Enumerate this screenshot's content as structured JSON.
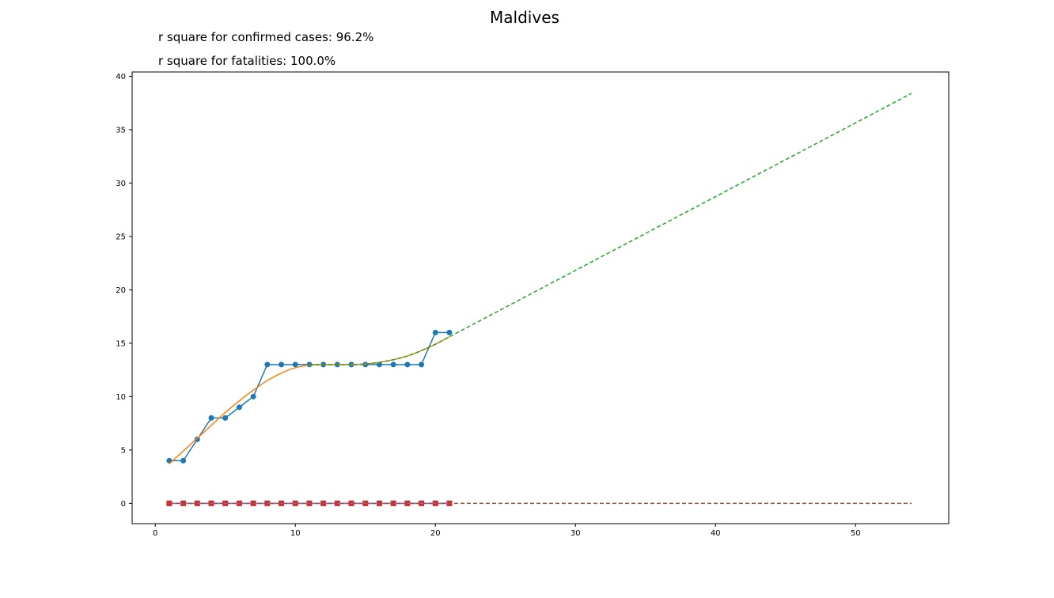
{
  "colors": {
    "confirmed": "#1f77b4",
    "confirmed_fit": "#ff7f0e",
    "confirmed_projection": "#2ca02c",
    "fatalities": "#d62728",
    "fatalities_fit": "#9467bd",
    "fatalities_projection": "#8c564b"
  },
  "chart_data": {
    "type": "line",
    "title": "Maldives",
    "annotations": [
      "r square for confirmed cases: 96.2%",
      "r square for fatalities: 100.0%"
    ],
    "xlabel": "",
    "ylabel": "",
    "xlim": [
      -1.65,
      56.65
    ],
    "ylim": [
      -1.9,
      40.4
    ],
    "xticks": [
      0,
      10,
      20,
      30,
      40,
      50
    ],
    "yticks": [
      0,
      5,
      10,
      15,
      20,
      25,
      30,
      35,
      40
    ],
    "grid": false,
    "series": [
      {
        "role": "confirmed",
        "style": "line-markers",
        "marker": "circle",
        "x": [
          1,
          2,
          3,
          4,
          5,
          6,
          7,
          8,
          9,
          10,
          11,
          12,
          13,
          14,
          15,
          16,
          17,
          18,
          19,
          20,
          21
        ],
        "y": [
          4,
          4,
          6,
          8,
          8,
          9,
          10,
          13,
          13,
          13,
          13,
          13,
          13,
          13,
          13,
          13,
          13,
          13,
          13,
          16,
          16
        ]
      },
      {
        "role": "confirmed_fit",
        "style": "solid",
        "x": [
          1,
          2,
          3,
          4,
          5,
          6,
          7,
          8,
          9,
          10,
          11,
          12,
          13,
          14,
          15,
          16,
          17,
          18,
          19,
          20,
          21
        ],
        "y": [
          3.7,
          4.9,
          6.1,
          7.3,
          8.5,
          9.6,
          10.6,
          11.5,
          12.2,
          12.7,
          12.95,
          13.0,
          13.0,
          13.0,
          13.05,
          13.2,
          13.45,
          13.8,
          14.3,
          14.9,
          15.6
        ]
      },
      {
        "role": "confirmed_projection",
        "style": "dashed",
        "x": [
          11,
          12,
          13,
          14,
          15,
          16,
          17,
          18,
          19,
          20,
          21,
          54
        ],
        "y": [
          12.95,
          13.0,
          13.0,
          13.0,
          13.05,
          13.2,
          13.45,
          13.8,
          14.3,
          14.9,
          15.6,
          38.4
        ]
      },
      {
        "role": "fatalities",
        "style": "line-markers",
        "marker": "square",
        "x": [
          1,
          2,
          3,
          4,
          5,
          6,
          7,
          8,
          9,
          10,
          11,
          12,
          13,
          14,
          15,
          16,
          17,
          18,
          19,
          20,
          21
        ],
        "y": [
          0,
          0,
          0,
          0,
          0,
          0,
          0,
          0,
          0,
          0,
          0,
          0,
          0,
          0,
          0,
          0,
          0,
          0,
          0,
          0,
          0
        ]
      },
      {
        "role": "fatalities_fit",
        "style": "solid",
        "x": [
          1,
          21
        ],
        "y": [
          0,
          0
        ]
      },
      {
        "role": "fatalities_projection",
        "style": "dashed",
        "x": [
          1,
          54
        ],
        "y": [
          0,
          0
        ]
      }
    ]
  }
}
